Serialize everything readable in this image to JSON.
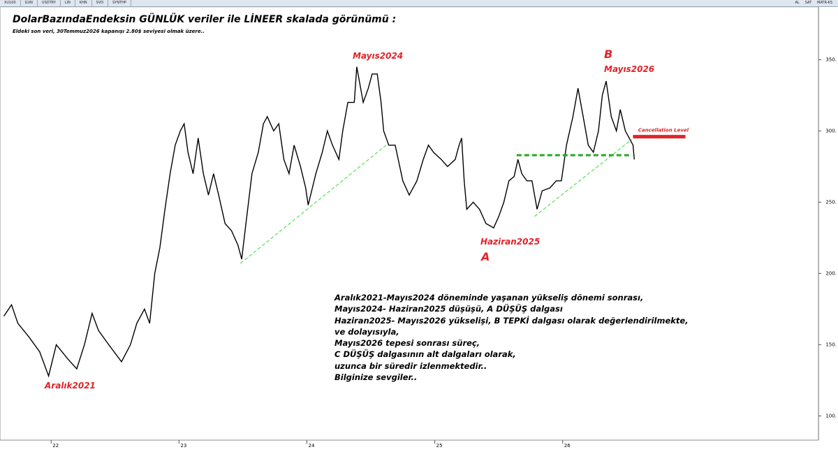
{
  "toolbar": {
    "items": [
      "XU100",
      "GUN",
      "USDTRY",
      "LIN",
      "KHN",
      "SVD",
      "SYNTHP"
    ],
    "right_items": [
      "AL",
      "SAT",
      "MATR-KS"
    ]
  },
  "chart_data": {
    "type": "line",
    "title": "DolarBazındaEndeksin GÜNLÜK veriler ile LİNEER skalada görünümü :",
    "subtitle": "Eldeki son veri, 30Temmuz2026 kapanışı 2.80$ seviyesi olmak üzere..",
    "color": "#000000",
    "x": [
      2021.63,
      2021.69,
      2021.74,
      2021.83,
      2021.91,
      2021.98,
      2022.04,
      2022.13,
      2022.2,
      2022.26,
      2022.32,
      2022.37,
      2022.45,
      2022.55,
      2022.62,
      2022.67,
      2022.73,
      2022.77,
      2022.81,
      2022.85,
      2022.89,
      2022.93,
      2022.97,
      2023.01,
      2023.04,
      2023.07,
      2023.11,
      2023.15,
      2023.19,
      2023.23,
      2023.27,
      2023.31,
      2023.36,
      2023.41,
      2023.46,
      2023.49,
      2023.53,
      2023.57,
      2023.62,
      2023.66,
      2023.69,
      2023.74,
      2023.78,
      2023.82,
      2023.86,
      2023.9,
      2023.95,
      2023.99,
      2024.01,
      2024.07,
      2024.12,
      2024.16,
      2024.2,
      2024.25,
      2024.28,
      2024.32,
      2024.37,
      2024.39,
      2024.44,
      2024.48,
      2024.51,
      2024.55,
      2024.58,
      2024.6,
      2024.64,
      2024.69,
      2024.75,
      2024.8,
      2024.86,
      2024.91,
      2024.95,
      2024.99,
      2025.05,
      2025.1,
      2025.16,
      2025.19,
      2025.21,
      2025.23,
      2025.25,
      2025.3,
      2025.35,
      2025.4,
      2025.46,
      2025.5,
      2025.54,
      2025.58,
      2025.62,
      2025.65,
      2025.68,
      2025.72,
      2025.76,
      2025.8,
      2025.84,
      2025.9,
      2025.95,
      2025.99,
      2026.03,
      2026.08,
      2026.12,
      2026.16,
      2026.2,
      2026.24,
      2026.28,
      2026.31,
      2026.34,
      2026.38,
      2026.42,
      2026.45,
      2026.49,
      2026.52,
      2026.55,
      2026.56
    ],
    "values": [
      170,
      178,
      165,
      155,
      145,
      128,
      150,
      140,
      133,
      150,
      172,
      160,
      150,
      138,
      150,
      165,
      175,
      165,
      200,
      218,
      245,
      270,
      290,
      300,
      305,
      285,
      270,
      295,
      270,
      255,
      270,
      255,
      235,
      230,
      220,
      210,
      240,
      270,
      285,
      305,
      310,
      300,
      305,
      280,
      270,
      290,
      275,
      260,
      248,
      270,
      285,
      300,
      290,
      280,
      300,
      320,
      320,
      345,
      320,
      330,
      340,
      340,
      320,
      300,
      290,
      290,
      265,
      255,
      265,
      280,
      290,
      285,
      280,
      275,
      280,
      290,
      295,
      265,
      245,
      250,
      245,
      235,
      232,
      240,
      250,
      265,
      268,
      280,
      270,
      265,
      265,
      245,
      258,
      260,
      265,
      265,
      290,
      310,
      330,
      310,
      290,
      285,
      300,
      325,
      335,
      310,
      300,
      315,
      300,
      295,
      290,
      280
    ],
    "xlim": [
      2021.6,
      2028.0
    ],
    "ylim": [
      83,
      387
    ],
    "xticks": [
      {
        "value": 2022,
        "label": "22"
      },
      {
        "value": 2023,
        "label": "23"
      },
      {
        "value": 2024,
        "label": "24"
      },
      {
        "value": 2025,
        "label": "25"
      },
      {
        "value": 2026,
        "label": "26"
      }
    ],
    "yticks": [
      {
        "value": 100,
        "label": "100."
      },
      {
        "value": 150,
        "label": "150."
      },
      {
        "value": 200,
        "label": "200."
      },
      {
        "value": 250,
        "label": "250."
      },
      {
        "value": 300,
        "label": "300."
      },
      {
        "value": 350,
        "label": "350."
      }
    ],
    "trend_lines": [
      {
        "x": [
          2023.48,
          2024.62
        ],
        "y": [
          207,
          290
        ],
        "color": "#33dd33"
      },
      {
        "x": [
          2025.78,
          2026.54
        ],
        "y": [
          240,
          294
        ],
        "color": "#33dd33"
      },
      {
        "x": [
          2025.64,
          2026.54
        ],
        "y": [
          283,
          283
        ],
        "color": "#22aa22"
      }
    ],
    "cancellation_level": {
      "text": "Cancellation Level",
      "value": 296,
      "x": [
        2026.55,
        2026.96
      ],
      "color": "#e0242a"
    },
    "annotations": [
      "Aralık2021",
      "Mayıs2024",
      "B",
      "Mayıs2026",
      "Haziran2025",
      "A"
    ],
    "commentary": [
      "Aralık2021-Mayıs2024 döneminde yaşanan yükseliş dönemi sonrası,",
      "Mayıs2024- Haziran2025 düşüşü, A DÜŞÜŞ dalgası",
      "Haziran2025- Mayıs2026 yükselişi, B TEPKİ dalgası olarak değerlendirilmekte,",
      "ve dolayısıyla,",
      "Mayıs2026 tepesi sonrası süreç,",
      "C DÜŞÜŞ dalgasının alt dalgaları olarak,",
      "uzunca bir süredir izlenmektedir..",
      "Bilginize sevgiler.."
    ]
  }
}
